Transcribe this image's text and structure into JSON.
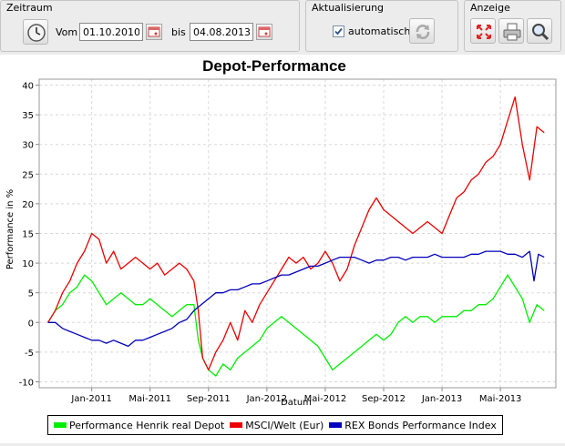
{
  "zeitraum": {
    "title": "Zeitraum",
    "from_label": "Vom",
    "from_value": "01.10.2010",
    "to_label": "bis",
    "to_value": "04.08.2013"
  },
  "aktualisierung": {
    "title": "Aktualisierung",
    "auto_label": "automatisch",
    "auto_checked": true
  },
  "anzeige": {
    "title": "Anzeige"
  },
  "icons": [
    "clock-icon",
    "calendar-icon",
    "refresh-icon",
    "fullscreen-icon",
    "print-icon",
    "zoom-icon"
  ],
  "chart_data": {
    "type": "line",
    "title": "Depot-Performance",
    "xlabel": "Datum",
    "ylabel": "Performance in %",
    "ylim": [
      -11,
      41
    ],
    "yticks": [
      -10,
      -5,
      0,
      5,
      10,
      15,
      20,
      25,
      30,
      35,
      40
    ],
    "xticks": [
      {
        "label": "Jan-2011",
        "t": 3
      },
      {
        "label": "Mai-2011",
        "t": 7
      },
      {
        "label": "Sep-2011",
        "t": 11
      },
      {
        "label": "Jan-2012",
        "t": 15
      },
      {
        "label": "Mai-2012",
        "t": 19
      },
      {
        "label": "Sep-2012",
        "t": 23
      },
      {
        "label": "Jan-2013",
        "t": 27
      },
      {
        "label": "Mai-2013",
        "t": 31
      }
    ],
    "xlim": [
      -0.6,
      34.8
    ],
    "grid": true,
    "legend_position": "bottom",
    "series": [
      {
        "name": "Performance Henrik real Depot",
        "color": "#00ee00",
        "x": [
          0,
          0.5,
          1,
          1.5,
          2,
          2.5,
          3,
          3.5,
          4,
          4.5,
          5,
          5.5,
          6,
          6.5,
          7,
          7.5,
          8,
          8.5,
          9,
          9.5,
          10,
          10.3,
          10.6,
          11,
          11.5,
          12,
          12.5,
          13,
          13.5,
          14,
          14.5,
          15,
          15.5,
          16,
          16.5,
          17,
          17.5,
          18,
          18.5,
          19,
          19.5,
          20,
          20.5,
          21,
          21.5,
          22,
          22.5,
          23,
          23.5,
          24,
          24.5,
          25,
          25.5,
          26,
          26.5,
          27,
          27.5,
          28,
          28.5,
          29,
          29.5,
          30,
          30.5,
          31,
          31.5,
          32,
          32.5,
          33,
          33.5,
          34
        ],
        "y": [
          0,
          2,
          3,
          5,
          6,
          8,
          7,
          5,
          3,
          4,
          5,
          4,
          3,
          3,
          4,
          3,
          2,
          1,
          2,
          3,
          3,
          -3,
          -6,
          -8,
          -9,
          -7,
          -8,
          -6,
          -5,
          -4,
          -3,
          -1,
          0,
          1,
          0,
          -1,
          -2,
          -3,
          -4,
          -6,
          -8,
          -7,
          -6,
          -5,
          -4,
          -3,
          -2,
          -3,
          -2,
          0,
          1,
          0,
          1,
          1,
          0,
          1,
          1,
          1,
          2,
          2,
          3,
          3,
          4,
          6,
          8,
          6,
          4,
          0,
          3,
          2
        ]
      },
      {
        "name": "MSCI/Welt (Eur)",
        "color": "#ee0000",
        "x": [
          0,
          0.5,
          1,
          1.5,
          2,
          2.5,
          3,
          3.5,
          4,
          4.5,
          5,
          5.5,
          6,
          6.5,
          7,
          7.5,
          8,
          8.5,
          9,
          9.5,
          10,
          10.3,
          10.6,
          11,
          11.5,
          12,
          12.5,
          13,
          13.5,
          14,
          14.5,
          15,
          15.5,
          16,
          16.5,
          17,
          17.5,
          18,
          18.5,
          19,
          19.5,
          20,
          20.5,
          21,
          21.5,
          22,
          22.5,
          23,
          23.5,
          24,
          24.5,
          25,
          25.5,
          26,
          26.5,
          27,
          27.5,
          28,
          28.5,
          29,
          29.5,
          30,
          30.5,
          31,
          31.5,
          32,
          32.5,
          33,
          33.5,
          34
        ],
        "y": [
          0,
          2,
          5,
          7,
          10,
          12,
          15,
          14,
          10,
          12,
          9,
          10,
          11,
          10,
          9,
          10,
          8,
          9,
          10,
          9,
          7,
          2,
          -6,
          -8,
          -5,
          -3,
          0,
          -3,
          2,
          0,
          3,
          5,
          7,
          9,
          11,
          10,
          11,
          9,
          10,
          12,
          10,
          7,
          9,
          13,
          16,
          19,
          21,
          19,
          18,
          17,
          16,
          15,
          16,
          17,
          16,
          15,
          18,
          21,
          22,
          24,
          25,
          27,
          28,
          30,
          34,
          38,
          30,
          24,
          33,
          32
        ]
      },
      {
        "name": "REX Bonds Performance Index",
        "color": "#0000bb",
        "x": [
          0,
          0.5,
          1,
          1.5,
          2,
          2.5,
          3,
          3.5,
          4,
          4.5,
          5,
          5.5,
          6,
          6.5,
          7,
          7.5,
          8,
          8.5,
          9,
          9.5,
          10,
          10.5,
          11,
          11.5,
          12,
          12.5,
          13,
          13.5,
          14,
          14.5,
          15,
          15.5,
          16,
          16.5,
          17,
          17.5,
          18,
          18.5,
          19,
          19.5,
          20,
          20.5,
          21,
          21.5,
          22,
          22.5,
          23,
          23.5,
          24,
          24.5,
          25,
          25.5,
          26,
          26.5,
          27,
          27.5,
          28,
          28.5,
          29,
          29.5,
          30,
          30.5,
          31,
          31.5,
          32,
          32.5,
          33,
          33.3,
          33.6,
          34
        ],
        "y": [
          0,
          0,
          -1,
          -1.5,
          -2,
          -2.5,
          -3,
          -3,
          -3.5,
          -3,
          -3.5,
          -4,
          -3,
          -3,
          -2.5,
          -2,
          -1.5,
          -1,
          0,
          0.5,
          2,
          3,
          4,
          5,
          5,
          5.5,
          5.5,
          6,
          6.5,
          6.5,
          7,
          7.5,
          8,
          8,
          8.5,
          9,
          9.5,
          9.5,
          10,
          10.5,
          11,
          11,
          11,
          10.5,
          10,
          10.5,
          10.5,
          11,
          11,
          10.5,
          11,
          11,
          11,
          11.5,
          11,
          11,
          11,
          11,
          11.5,
          11.5,
          12,
          12,
          12,
          11.5,
          11.5,
          11,
          12,
          7,
          11.5,
          11
        ]
      }
    ]
  }
}
